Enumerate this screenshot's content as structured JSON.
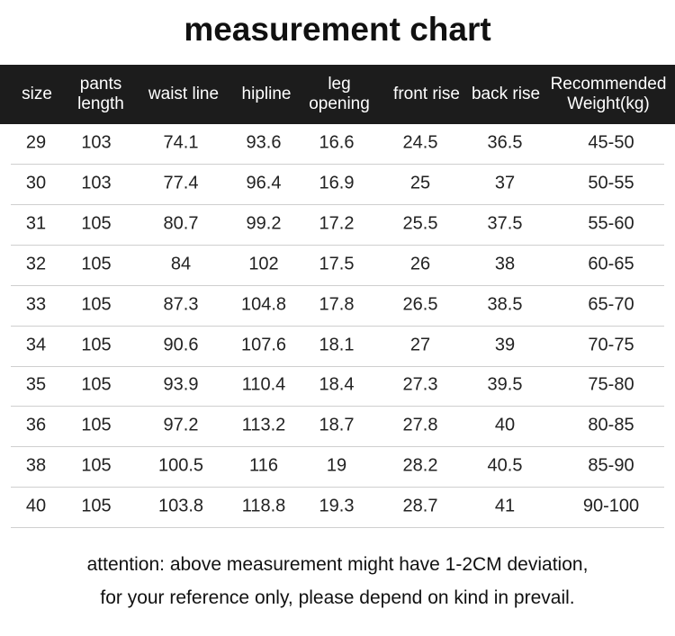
{
  "title": "measurement chart",
  "table": {
    "header": [
      [
        "size"
      ],
      [
        "pants",
        "length"
      ],
      [
        "waist line"
      ],
      [
        "hipline"
      ],
      [
        "leg",
        "opening"
      ],
      [
        "front rise"
      ],
      [
        "back rise"
      ],
      [
        "Recommended",
        "Weight(kg)"
      ]
    ],
    "rows": [
      [
        "29",
        "103",
        "74.1",
        "93.6",
        "16.6",
        "24.5",
        "36.5",
        "45-50"
      ],
      [
        "30",
        "103",
        "77.4",
        "96.4",
        "16.9",
        "25",
        "37",
        "50-55"
      ],
      [
        "31",
        "105",
        "80.7",
        "99.2",
        "17.2",
        "25.5",
        "37.5",
        "55-60"
      ],
      [
        "32",
        "105",
        "84",
        "102",
        "17.5",
        "26",
        "38",
        "60-65"
      ],
      [
        "33",
        "105",
        "87.3",
        "104.8",
        "17.8",
        "26.5",
        "38.5",
        "65-70"
      ],
      [
        "34",
        "105",
        "90.6",
        "107.6",
        "18.1",
        "27",
        "39",
        "70-75"
      ],
      [
        "35",
        "105",
        "93.9",
        "110.4",
        "18.4",
        "27.3",
        "39.5",
        "75-80"
      ],
      [
        "36",
        "105",
        "97.2",
        "113.2",
        "18.7",
        "27.8",
        "40",
        "80-85"
      ],
      [
        "38",
        "105",
        "100.5",
        "116",
        "19",
        "28.2",
        "40.5",
        "85-90"
      ],
      [
        "40",
        "105",
        "103.8",
        "118.8",
        "19.3",
        "28.7",
        "41",
        "90-100"
      ]
    ]
  },
  "notes": [
    "attention: above measurement might have 1-2CM deviation,",
    "for your reference only, please depend on kind in prevail."
  ]
}
